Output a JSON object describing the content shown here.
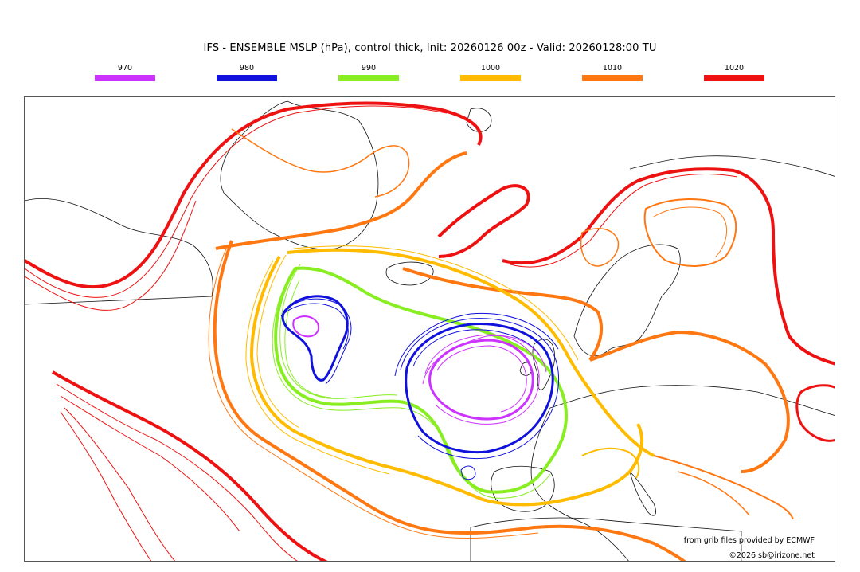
{
  "title": "IFS - ENSEMBLE MSLP (hPa), control thick, Init: 20260126 00z - Valid: 20260128:00 TU",
  "legend": [
    {
      "label": "970",
      "color": "#cc33ff"
    },
    {
      "label": "980",
      "color": "#1111dd"
    },
    {
      "label": "990",
      "color": "#88ee22"
    },
    {
      "label": "1000",
      "color": "#ffbb00"
    },
    {
      "label": "1010",
      "color": "#ff7711"
    },
    {
      "label": "1020",
      "color": "#ee1111"
    }
  ],
  "credits": {
    "source": "from grib files provided by ECMWF",
    "copyright": "©2026 sb@irizone.net"
  }
}
